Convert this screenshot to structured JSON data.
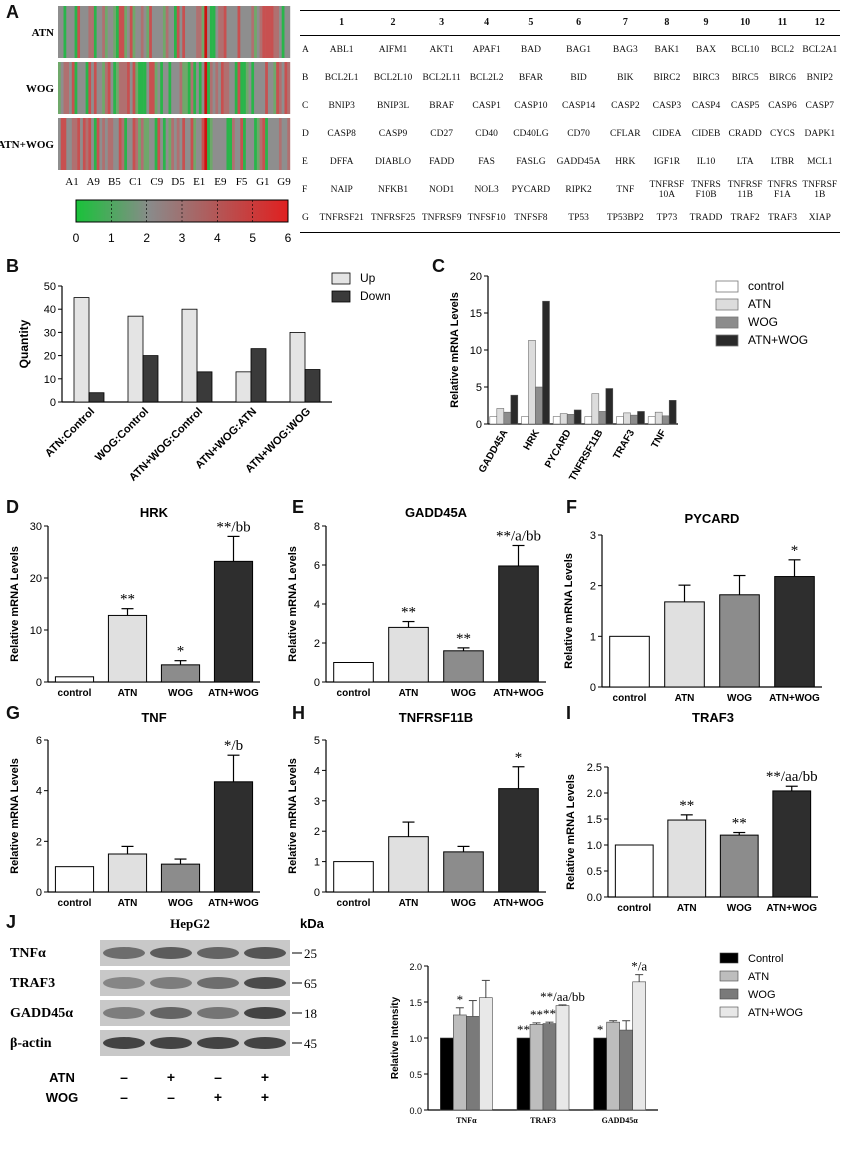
{
  "panel_letters": [
    "A",
    "B",
    "C",
    "D",
    "E",
    "F",
    "G",
    "H",
    "I",
    "J"
  ],
  "heatmap": {
    "row_labels": [
      "ATN",
      "WOG",
      "ATN+WOG"
    ],
    "x_ticks": [
      "A1",
      "A9",
      "B5",
      "C1",
      "C9",
      "D5",
      "E1",
      "E9",
      "F5",
      "G1",
      "G9"
    ],
    "colorbar_ticks": [
      "0",
      "1",
      "2",
      "3",
      "4",
      "5",
      "6"
    ],
    "colors": {
      "low": "#19c23a",
      "mid": "#8a8a8a",
      "high": "#e02020"
    }
  },
  "gene_table": {
    "columns": [
      "1",
      "2",
      "3",
      "4",
      "5",
      "6",
      "7",
      "8",
      "9",
      "10",
      "11",
      "12"
    ],
    "rows": [
      {
        "label": "A",
        "genes": [
          "ABL1",
          "AIFM1",
          "AKT1",
          "APAF1",
          "BAD",
          "BAG1",
          "BAG3",
          "BAK1",
          "BAX",
          "BCL10",
          "BCL2",
          "BCL2A1"
        ]
      },
      {
        "label": "B",
        "genes": [
          "BCL2L1",
          "BCL2L10",
          "BCL2L11",
          "BCL2L2",
          "BFAR",
          "BID",
          "BIK",
          "BIRC2",
          "BIRC3",
          "BIRC5",
          "BIRC6",
          "BNIP2"
        ]
      },
      {
        "label": "C",
        "genes": [
          "BNIP3",
          "BNIP3L",
          "BRAF",
          "CASP1",
          "CASP10",
          "CASP14",
          "CASP2",
          "CASP3",
          "CASP4",
          "CASP5",
          "CASP6",
          "CASP7"
        ]
      },
      {
        "label": "D",
        "genes": [
          "CASP8",
          "CASP9",
          "CD27",
          "CD40",
          "CD40LG",
          "CD70",
          "CFLAR",
          "CIDEA",
          "CIDEB",
          "CRADD",
          "CYCS",
          "DAPK1"
        ]
      },
      {
        "label": "E",
        "genes": [
          "DFFA",
          "DIABLO",
          "FADD",
          "FAS",
          "FASLG",
          "GADD45A",
          "HRK",
          "IGF1R",
          "IL10",
          "LTA",
          "LTBR",
          "MCL1"
        ]
      },
      {
        "label": "F",
        "genes": [
          "NAIP",
          "NFKB1",
          "NOD1",
          "NOL3",
          "PYCARD",
          "RIPK2",
          "TNF",
          "TNFRSF 10A",
          "TNFRS F10B",
          "TNFRSF 11B",
          "TNFRS F1A",
          "TNFRSF 1B"
        ]
      },
      {
        "label": "G",
        "genes": [
          "TNFRSF21",
          "TNFRSF25",
          "TNFRSF9",
          "TNFSF10",
          "TNFSF8",
          "TP53",
          "TP53BP2",
          "TP73",
          "TRADD",
          "TRAF2",
          "TRAF3",
          "XIAP"
        ]
      }
    ]
  },
  "chart_data": [
    {
      "id": "B",
      "type": "bar",
      "categories": [
        "ATN:Control",
        "WOG:Control",
        "ATN+WOG:Control",
        "ATN+WOG:ATN",
        "ATN+WOG:WOG"
      ],
      "series": [
        {
          "name": "Up",
          "values": [
            45,
            37,
            40,
            13,
            30
          ],
          "color": "#e4e4e4"
        },
        {
          "name": "Down",
          "values": [
            4,
            20,
            13,
            23,
            14
          ],
          "color": "#3a3a3a"
        }
      ],
      "ylabel": "Quantity",
      "ylim": [
        0,
        50
      ],
      "yticks": [
        0,
        10,
        20,
        30,
        40,
        50
      ]
    },
    {
      "id": "C",
      "type": "bar",
      "categories": [
        "GADD45A",
        "HRK",
        "PYCARD",
        "TNFRSF11B",
        "TRAF3",
        "TNF"
      ],
      "series": [
        {
          "name": "control",
          "values": [
            1,
            1,
            1,
            1,
            1,
            1
          ],
          "color": "#ffffff"
        },
        {
          "name": "ATN",
          "values": [
            2.1,
            11.3,
            1.4,
            4.1,
            1.5,
            1.6
          ],
          "color": "#dcdcdc"
        },
        {
          "name": "WOG",
          "values": [
            1.6,
            5.0,
            1.3,
            1.7,
            1.2,
            1.1
          ],
          "color": "#8c8c8c"
        },
        {
          "name": "ATN+WOG",
          "values": [
            3.9,
            16.6,
            1.9,
            4.8,
            1.7,
            3.2
          ],
          "color": "#2a2a2a"
        }
      ],
      "ylabel": "Relative mRNA Levels",
      "ylim": [
        0,
        20
      ],
      "yticks": [
        0,
        5,
        10,
        15,
        20
      ]
    },
    {
      "id": "D",
      "type": "bar",
      "title": "HRK",
      "categories": [
        "control",
        "ATN",
        "WOG",
        "ATN+WOG"
      ],
      "values": [
        1,
        12.8,
        3.3,
        23.2
      ],
      "errors": [
        0,
        1.3,
        0.8,
        4.8
      ],
      "annotations": [
        "",
        "**",
        "*",
        "**/bb"
      ],
      "ylabel": "Relative mRNA Levels",
      "ylim": [
        0,
        30
      ],
      "yticks": [
        0,
        10,
        20,
        30
      ]
    },
    {
      "id": "E",
      "type": "bar",
      "title": "GADD45A",
      "categories": [
        "control",
        "ATN",
        "WOG",
        "ATN+WOG"
      ],
      "values": [
        1,
        2.8,
        1.6,
        5.95
      ],
      "errors": [
        0,
        0.3,
        0.15,
        1.05
      ],
      "annotations": [
        "",
        "**",
        "**",
        "**/a/bb"
      ],
      "ylabel": "Relative mRNA Levels",
      "ylim": [
        0,
        8
      ],
      "yticks": [
        0,
        2,
        4,
        6,
        8
      ]
    },
    {
      "id": "F",
      "type": "bar",
      "title": "PYCARD",
      "categories": [
        "control",
        "ATN",
        "WOG",
        "ATN+WOG"
      ],
      "values": [
        1,
        1.68,
        1.82,
        2.18
      ],
      "errors": [
        0,
        0.33,
        0.38,
        0.33
      ],
      "annotations": [
        "",
        "",
        "",
        "*"
      ],
      "ylabel": "Relative mRNA Levels",
      "ylim": [
        0,
        3
      ],
      "yticks": [
        0,
        1,
        2,
        3
      ]
    },
    {
      "id": "G",
      "type": "bar",
      "title": "TNF",
      "categories": [
        "control",
        "ATN",
        "WOG",
        "ATN+WOG"
      ],
      "values": [
        1,
        1.5,
        1.1,
        4.35
      ],
      "errors": [
        0,
        0.3,
        0.2,
        1.05
      ],
      "annotations": [
        "",
        "",
        "",
        "*/b"
      ],
      "ylabel": "Relative mRNA Levels",
      "ylim": [
        0,
        6
      ],
      "yticks": [
        0,
        2,
        4,
        6
      ]
    },
    {
      "id": "H",
      "type": "bar",
      "title": "TNFRSF11B",
      "categories": [
        "control",
        "ATN",
        "WOG",
        "ATN+WOG"
      ],
      "values": [
        1,
        1.82,
        1.32,
        3.4
      ],
      "errors": [
        0,
        0.48,
        0.18,
        0.72
      ],
      "annotations": [
        "",
        "",
        "",
        "*"
      ],
      "ylabel": "Relative mRNA Levels",
      "ylim": [
        0,
        5
      ],
      "yticks": [
        0,
        1,
        2,
        3,
        4,
        5
      ]
    },
    {
      "id": "I",
      "type": "bar",
      "title": "TRAF3",
      "categories": [
        "control",
        "ATN",
        "WOG",
        "ATN+WOG"
      ],
      "values": [
        1,
        1.48,
        1.19,
        2.04
      ],
      "errors": [
        0,
        0.1,
        0.05,
        0.09
      ],
      "annotations": [
        "",
        "**",
        "**",
        "**/aa/bb"
      ],
      "ylabel": "Relative mRNA Levels",
      "ylim": [
        0,
        2.5
      ],
      "yticks": [
        "0.0",
        "0.5",
        "1.0",
        "1.5",
        "2.0",
        "2.5"
      ]
    },
    {
      "id": "J",
      "type": "bar",
      "categories": [
        "TNFα",
        "TRAF3",
        "GADD45α"
      ],
      "series": [
        {
          "name": "Control",
          "values": [
            1,
            1,
            1
          ],
          "errors": [
            0,
            0,
            0
          ],
          "color": "#000000"
        },
        {
          "name": "ATN",
          "values": [
            1.32,
            1.19,
            1.22
          ],
          "errors": [
            0.1,
            0.02,
            0.02
          ],
          "color": "#bdbdbd"
        },
        {
          "name": "WOG",
          "values": [
            1.3,
            1.2,
            1.11
          ],
          "errors": [
            0.22,
            0.02,
            0.13
          ],
          "color": "#7a7a7a"
        },
        {
          "name": "ATN+WOG",
          "values": [
            1.56,
            1.45,
            1.78
          ],
          "errors": [
            0.24,
            0.01,
            0.1
          ],
          "color": "#e8e8e8"
        }
      ],
      "annotations": [
        [
          "",
          "*",
          "",
          ""
        ],
        [
          "**",
          "**",
          "**",
          "**/aa/bb"
        ],
        [
          "*",
          "",
          "",
          "*/a"
        ]
      ],
      "ylabel": "Relative Intensity",
      "ylim": [
        0,
        2.0
      ],
      "yticks": [
        "0.0",
        "0.5",
        "1.0",
        "1.5",
        "2.0"
      ]
    }
  ],
  "western": {
    "title": "HepG2",
    "kda_label": "kDa",
    "rows": [
      {
        "protein": "TNFα",
        "kda": "25"
      },
      {
        "protein": "TRAF3",
        "kda": "65"
      },
      {
        "protein": "GADD45α",
        "kda": "18"
      },
      {
        "protein": "β-actin",
        "kda": "45"
      }
    ],
    "treatments": [
      {
        "name": "ATN",
        "signs": [
          "–",
          "+",
          "–",
          "+"
        ]
      },
      {
        "name": "WOG",
        "signs": [
          "–",
          "–",
          "+",
          "+"
        ]
      }
    ]
  }
}
